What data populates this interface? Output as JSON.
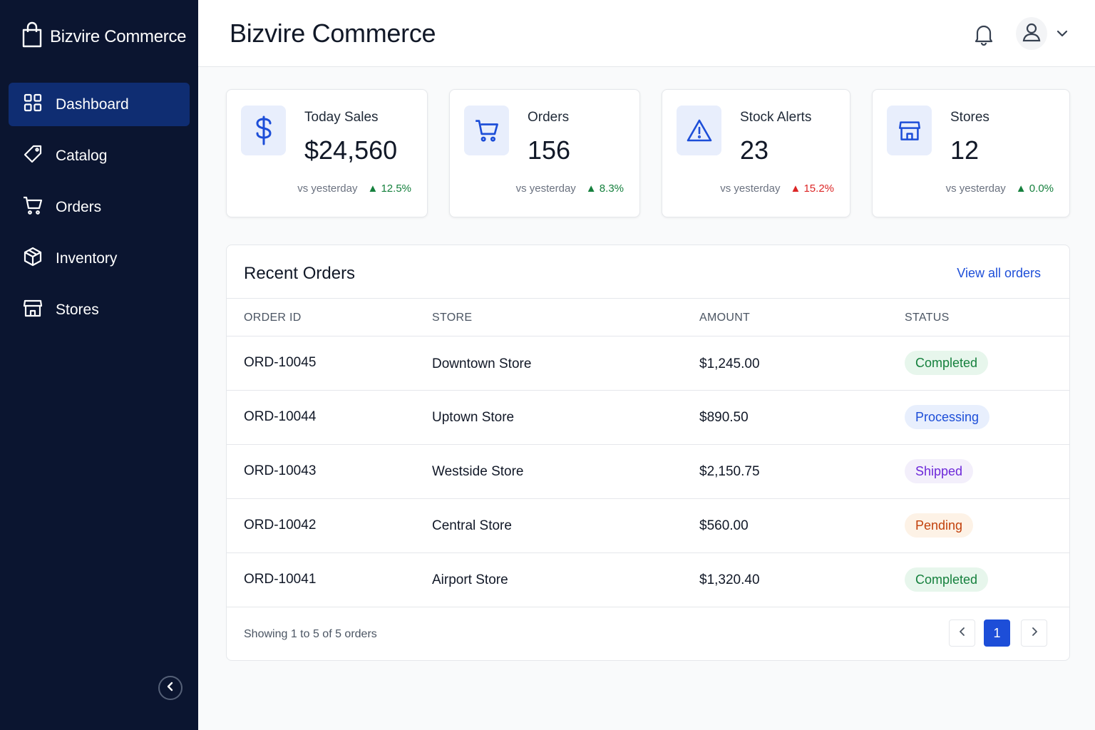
{
  "brand": {
    "name": "Bizvire Commerce",
    "icon": "shopping-bag-icon"
  },
  "sidebar": {
    "items": [
      {
        "label": "Dashboard",
        "icon": "dashboard-grid-icon",
        "active": true
      },
      {
        "label": "Catalog",
        "icon": "tag-icon"
      },
      {
        "label": "Orders",
        "icon": "cart-icon"
      },
      {
        "label": "Inventory",
        "icon": "box-icon"
      },
      {
        "label": "Stores",
        "icon": "store-icon"
      }
    ]
  },
  "header": {
    "title": "Bizvire Commerce"
  },
  "stats": [
    {
      "label": "Today Sales",
      "value": "$24,560",
      "vs": "vs yesterday",
      "change": "▲ 12.5%",
      "trend_color": "#15803d",
      "icon": "dollar-icon"
    },
    {
      "label": "Orders",
      "value": "156",
      "vs": "vs yesterday",
      "change": "▲ 8.3%",
      "trend_color": "#15803d",
      "icon": "cart-icon"
    },
    {
      "label": "Stock Alerts",
      "value": "23",
      "vs": "vs yesterday",
      "change": "▲ 15.2%",
      "trend_color": "#dc2626",
      "icon": "warning-icon"
    },
    {
      "label": "Stores",
      "value": "12",
      "vs": "vs yesterday",
      "change": "▲ 0.0%",
      "trend_color": "#15803d",
      "icon": "store-icon"
    }
  ],
  "recent_orders": {
    "title": "Recent Orders",
    "view_all": "View all orders",
    "columns": [
      "ORDER ID",
      "STORE",
      "AMOUNT",
      "STATUS"
    ],
    "rows": [
      {
        "id": "ORD-10045",
        "store": "Downtown Store",
        "amount": "$1,245.00",
        "status": "Completed"
      },
      {
        "id": "ORD-10044",
        "store": "Uptown Store",
        "amount": "$890.50",
        "status": "Processing"
      },
      {
        "id": "ORD-10043",
        "store": "Westside Store",
        "amount": "$2,150.75",
        "status": "Shipped"
      },
      {
        "id": "ORD-10042",
        "store": "Central Store",
        "amount": "$560.00",
        "status": "Pending"
      },
      {
        "id": "ORD-10041",
        "store": "Airport Store",
        "amount": "$1,320.40",
        "status": "Completed"
      }
    ],
    "footer": "Showing 1 to 5 of 5 orders",
    "current_page": "1"
  },
  "colors": {
    "sidebar_bg": "#0b1530",
    "active_nav": "#0f2d72",
    "accent": "#1d4ed8"
  }
}
